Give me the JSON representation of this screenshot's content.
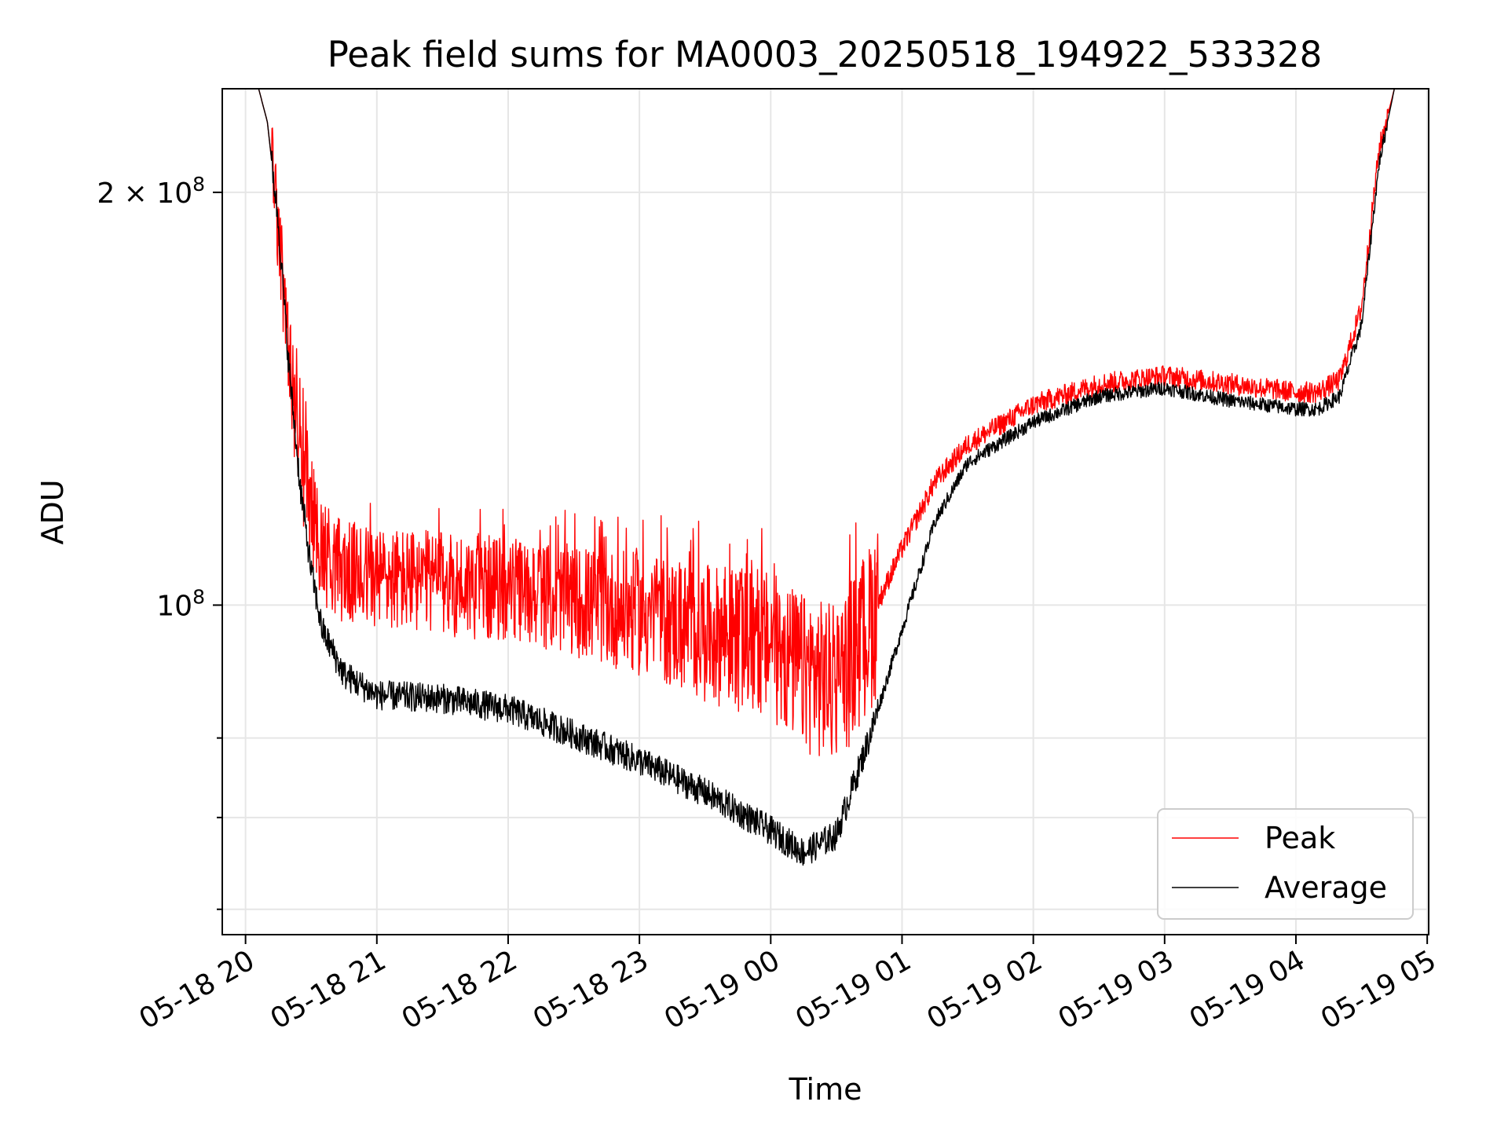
{
  "chart_data": {
    "type": "line",
    "title": "Peak field sums for MA0003_20250518_194922_533328",
    "xlabel": "Time",
    "ylabel": "ADU",
    "y_scale": "log",
    "ylim": [
      57500000,
      238000000
    ],
    "xlim": [
      "2025-05-18 19:49:22",
      "2025-05-19 05:00:40"
    ],
    "grid": true,
    "legend_position": "lower-right",
    "x_ticks": [
      "05-18 20",
      "05-18 21",
      "05-18 22",
      "05-18 23",
      "05-19 00",
      "05-19 01",
      "05-19 02",
      "05-19 03",
      "05-19 04",
      "05-19 05"
    ],
    "x_tick_times": [
      "2025-05-18 20:00",
      "2025-05-18 21:00",
      "2025-05-18 22:00",
      "2025-05-18 23:00",
      "2025-05-19 00:00",
      "2025-05-19 01:00",
      "2025-05-19 02:00",
      "2025-05-19 03:00",
      "2025-05-19 04:00",
      "2025-05-19 05:00"
    ],
    "y_ticks_major": [
      {
        "value": 100000000,
        "base": "10",
        "exp": "8"
      },
      {
        "value": 200000000,
        "base": "2 × 10",
        "exp": "8"
      }
    ],
    "y_ticks_minor": [
      60000000,
      70000000,
      80000000
    ],
    "series": [
      {
        "name": "Peak",
        "color": "#ff0000",
        "x": [
          "2025-05-18 19:49",
          "2025-05-18 20:06",
          "2025-05-18 20:10",
          "2025-05-18 20:15",
          "2025-05-18 20:20",
          "2025-05-18 20:25",
          "2025-05-18 20:30",
          "2025-05-18 20:35",
          "2025-05-18 20:45",
          "2025-05-18 21:00",
          "2025-05-18 21:30",
          "2025-05-18 22:00",
          "2025-05-18 22:30",
          "2025-05-18 23:00",
          "2025-05-18 23:30",
          "2025-05-19 00:00",
          "2025-05-19 00:15",
          "2025-05-19 00:30",
          "2025-05-19 00:45",
          "2025-05-19 01:00",
          "2025-05-19 01:15",
          "2025-05-19 01:30",
          "2025-05-19 02:00",
          "2025-05-19 02:30",
          "2025-05-19 03:00",
          "2025-05-19 03:30",
          "2025-05-19 04:00",
          "2025-05-19 04:10",
          "2025-05-19 04:20",
          "2025-05-19 04:30",
          "2025-05-19 04:38",
          "2025-05-19 04:45",
          "2025-05-19 05:00"
        ],
        "y": [
          238000000,
          238000000,
          225000000,
          190000000,
          150000000,
          128000000,
          118000000,
          110000000,
          106000000,
          105000000,
          104000000,
          103000000,
          101000000,
          99000000,
          96000000,
          94000000,
          90000000,
          88000000,
          97000000,
          110000000,
          123000000,
          131000000,
          140000000,
          145000000,
          147000000,
          145000000,
          143000000,
          143000000,
          146000000,
          165000000,
          215000000,
          238000000,
          238000000
        ]
      },
      {
        "name": "Average",
        "color": "#000000",
        "x": [
          "2025-05-18 19:49",
          "2025-05-18 20:06",
          "2025-05-18 20:10",
          "2025-05-18 20:15",
          "2025-05-18 20:20",
          "2025-05-18 20:25",
          "2025-05-18 20:30",
          "2025-05-18 20:35",
          "2025-05-18 20:45",
          "2025-05-18 21:00",
          "2025-05-18 21:30",
          "2025-05-18 22:00",
          "2025-05-18 22:30",
          "2025-05-18 23:00",
          "2025-05-18 23:30",
          "2025-05-19 00:00",
          "2025-05-19 00:15",
          "2025-05-19 00:30",
          "2025-05-19 00:45",
          "2025-05-19 01:00",
          "2025-05-19 01:15",
          "2025-05-19 01:30",
          "2025-05-19 02:00",
          "2025-05-19 02:30",
          "2025-05-19 03:00",
          "2025-05-19 03:30",
          "2025-05-19 04:00",
          "2025-05-19 04:10",
          "2025-05-19 04:20",
          "2025-05-19 04:30",
          "2025-05-19 04:38",
          "2025-05-19 04:45",
          "2025-05-19 05:00"
        ],
        "y": [
          238000000,
          238000000,
          225000000,
          190000000,
          148000000,
          122000000,
          106000000,
          96000000,
          89000000,
          86000000,
          85500000,
          84000000,
          80500000,
          77000000,
          73000000,
          68500000,
          66000000,
          68000000,
          80000000,
          96000000,
          115000000,
          127000000,
          136000000,
          142000000,
          144000000,
          141000000,
          139000000,
          139000000,
          142000000,
          160000000,
          210000000,
          238000000,
          238000000
        ]
      }
    ]
  }
}
